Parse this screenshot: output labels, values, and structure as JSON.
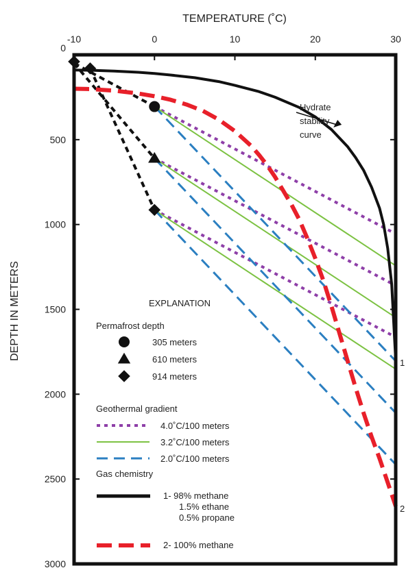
{
  "chart_data": {
    "type": "line",
    "title": "",
    "xlabel": "TEMPERATURE (˚C)",
    "ylabel": "DEPTH IN METERS",
    "xlim": [
      -10,
      30
    ],
    "ylim": [
      3000,
      0
    ],
    "x_ticks": [
      -10,
      0,
      10,
      20,
      30
    ],
    "y_ticks": [
      0,
      500,
      1000,
      1500,
      2000,
      2500,
      3000
    ],
    "x_tick_labels": [
      "-10",
      "0",
      "10",
      "20",
      "30"
    ],
    "y_tick_labels": [
      "0",
      "500",
      "1000",
      "1500",
      "2000",
      "2500",
      "3000"
    ],
    "x_axis_position": "top",
    "grid": false,
    "legend_placement": "bottom-left",
    "colors": {
      "gradient_4_0": "#8e3fa8",
      "gradient_3_2": "#7cc242",
      "gradient_2_0": "#2b7fc1",
      "methane_98": "#111111",
      "methane_100": "#e8202a",
      "permafrost": "#111111"
    },
    "series": [
      {
        "role": "hydrate_stability",
        "curve_id": "1",
        "legend_ref": "gas_98",
        "points": [
          [
            -10,
            90
          ],
          [
            -8,
            91
          ],
          [
            -5,
            96
          ],
          [
            -2,
            103
          ],
          [
            0,
            110
          ],
          [
            2,
            119
          ],
          [
            5,
            135
          ],
          [
            8,
            158
          ],
          [
            10,
            180
          ],
          [
            13,
            217
          ],
          [
            15,
            250
          ],
          [
            18,
            310
          ],
          [
            20,
            366
          ],
          [
            22,
            440
          ],
          [
            24,
            540
          ],
          [
            25,
            605
          ],
          [
            26,
            680
          ],
          [
            27,
            780
          ],
          [
            28,
            905
          ],
          [
            28.5,
            1000
          ],
          [
            29,
            1140
          ],
          [
            29.5,
            1350
          ],
          [
            30,
            1800
          ]
        ]
      },
      {
        "role": "hydrate_stability",
        "curve_id": "2",
        "legend_ref": "gas_100",
        "points": [
          [
            -10,
            200
          ],
          [
            -8,
            202
          ],
          [
            -5,
            211
          ],
          [
            -2,
            228
          ],
          [
            0,
            244
          ],
          [
            2,
            265
          ],
          [
            4,
            293
          ],
          [
            6,
            330
          ],
          [
            8,
            382
          ],
          [
            10,
            450
          ],
          [
            12,
            536
          ],
          [
            13,
            590
          ],
          [
            14,
            650
          ],
          [
            15,
            720
          ],
          [
            16,
            800
          ],
          [
            17,
            880
          ],
          [
            18,
            970
          ],
          [
            19,
            1080
          ],
          [
            20,
            1200
          ],
          [
            21,
            1330
          ],
          [
            22,
            1480
          ],
          [
            23,
            1640
          ],
          [
            24,
            1800
          ],
          [
            25,
            1960
          ],
          [
            26,
            2110
          ],
          [
            27,
            2250
          ],
          [
            28,
            2380
          ],
          [
            29,
            2520
          ],
          [
            30,
            2660
          ]
        ]
      },
      {
        "role": "permafrost_geotherm",
        "legend_ref": "permafrost_305",
        "points": [
          [
            -10,
            50
          ],
          [
            0,
            305
          ]
        ]
      },
      {
        "role": "permafrost_geotherm",
        "legend_ref": "permafrost_610",
        "points": [
          [
            -10,
            50
          ],
          [
            0,
            610
          ]
        ]
      },
      {
        "role": "permafrost_geotherm",
        "legend_ref": "permafrost_914",
        "points": [
          [
            -8,
            80
          ],
          [
            0,
            914
          ]
        ]
      },
      {
        "role": "geothermal_gradient",
        "legend_ref": "grad_4_0",
        "points": [
          [
            0,
            305
          ],
          [
            30,
            1055
          ]
        ]
      },
      {
        "role": "geothermal_gradient",
        "legend_ref": "grad_4_0",
        "points": [
          [
            0,
            610
          ],
          [
            30,
            1360
          ]
        ]
      },
      {
        "role": "geothermal_gradient",
        "legend_ref": "grad_4_0",
        "points": [
          [
            0,
            914
          ],
          [
            30,
            1664
          ]
        ]
      },
      {
        "role": "geothermal_gradient",
        "legend_ref": "grad_3_2",
        "points": [
          [
            0,
            305
          ],
          [
            30,
            1243
          ]
        ]
      },
      {
        "role": "geothermal_gradient",
        "legend_ref": "grad_3_2",
        "points": [
          [
            0,
            610
          ],
          [
            30,
            1548
          ]
        ]
      },
      {
        "role": "geothermal_gradient",
        "legend_ref": "grad_3_2",
        "points": [
          [
            0,
            914
          ],
          [
            30,
            1852
          ]
        ]
      },
      {
        "role": "geothermal_gradient",
        "legend_ref": "grad_2_0",
        "points": [
          [
            0,
            305
          ],
          [
            30,
            1805
          ]
        ]
      },
      {
        "role": "geothermal_gradient",
        "legend_ref": "grad_2_0",
        "points": [
          [
            0,
            610
          ],
          [
            30,
            2110
          ]
        ]
      },
      {
        "role": "geothermal_gradient",
        "legend_ref": "grad_2_0",
        "points": [
          [
            0,
            914
          ],
          [
            30,
            2414
          ]
        ]
      }
    ],
    "markers": [
      {
        "shape": "circle",
        "x": 0,
        "y": 305
      },
      {
        "shape": "triangle",
        "x": 0,
        "y": 610
      },
      {
        "shape": "diamond",
        "x": 0,
        "y": 914
      },
      {
        "shape": "diamond",
        "x": -8,
        "y": 80
      },
      {
        "shape": "diamond",
        "x": -10,
        "y": 40
      }
    ],
    "annotation": {
      "lines": [
        "Hydrate",
        "stability",
        "curve"
      ],
      "points_to": [
        22,
        440
      ]
    },
    "end_labels": [
      {
        "text": "1",
        "x": 30,
        "y": 1800
      },
      {
        "text": "2",
        "x": 30,
        "y": 2660
      }
    ],
    "legend": {
      "heading": "EXPLANATION",
      "permafrost_title": "Permafrost depth",
      "permafrost_items": [
        {
          "id": "permafrost_305",
          "shape": "circle",
          "label": "305 meters"
        },
        {
          "id": "permafrost_610",
          "shape": "triangle",
          "label": "610 meters"
        },
        {
          "id": "permafrost_914",
          "shape": "diamond",
          "label": "914 meters"
        }
      ],
      "gradient_title": "Geothermal gradient",
      "gradient_items": [
        {
          "id": "grad_4_0",
          "style": "dotted",
          "color": "#8e3fa8",
          "label": "4.0˚C/100 meters"
        },
        {
          "id": "grad_3_2",
          "style": "solid",
          "color": "#7cc242",
          "label": "3.2˚C/100 meters"
        },
        {
          "id": "grad_2_0",
          "style": "dashed",
          "color": "#2b7fc1",
          "label": "2.0˚C/100 meters"
        }
      ],
      "gas_title": "Gas chemistry",
      "gas_items": [
        {
          "id": "gas_98",
          "style": "solid",
          "color": "#111111",
          "lines": [
            "1-  98% methane",
            "1.5% ethane",
            "0.5% propane"
          ]
        },
        {
          "id": "gas_100",
          "style": "dashed",
          "color": "#e8202a",
          "lines": [
            "2-  100% methane"
          ]
        }
      ]
    }
  }
}
